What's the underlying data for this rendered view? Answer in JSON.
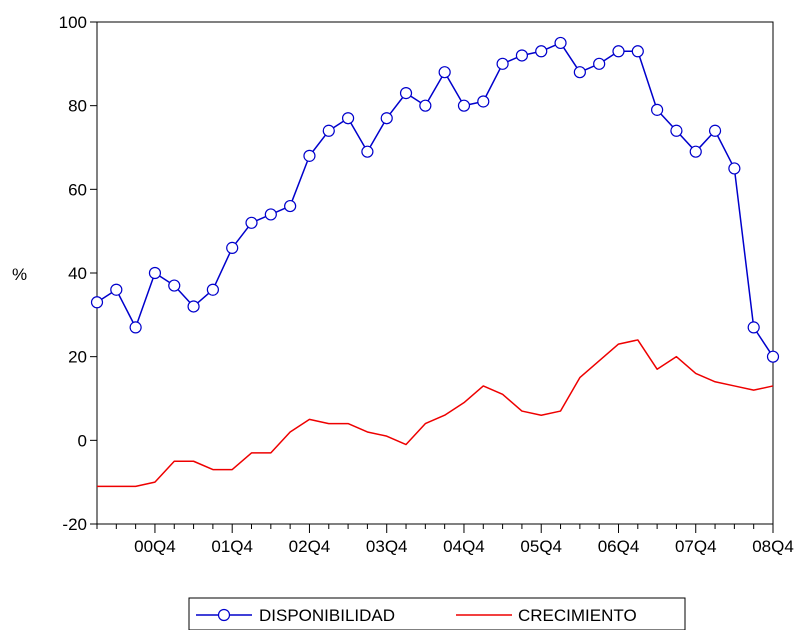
{
  "chart_data": {
    "type": "line",
    "ylabel": "%",
    "ylim": [
      -20,
      100
    ],
    "yticks": [
      -20,
      0,
      20,
      40,
      60,
      80,
      100
    ],
    "x": [
      "00Q1",
      "00Q2",
      "00Q3",
      "00Q4",
      "01Q1",
      "01Q2",
      "01Q3",
      "01Q4",
      "02Q1",
      "02Q2",
      "02Q3",
      "02Q4",
      "03Q1",
      "03Q2",
      "03Q3",
      "03Q4",
      "04Q1",
      "04Q2",
      "04Q3",
      "04Q4",
      "05Q1",
      "05Q2",
      "05Q3",
      "05Q4",
      "06Q1",
      "06Q2",
      "06Q3",
      "06Q4",
      "07Q1",
      "07Q2",
      "07Q3",
      "07Q4",
      "08Q1",
      "08Q2",
      "08Q3",
      "08Q4"
    ],
    "xtick_labels": [
      "00Q4",
      "01Q4",
      "02Q4",
      "03Q4",
      "04Q4",
      "05Q4",
      "06Q4",
      "07Q4",
      "08Q4"
    ],
    "grid": false,
    "legend": "bottom",
    "series": [
      {
        "name": "DISPONIBILIDAD",
        "color": "#0000cc",
        "marker": "circle",
        "values": [
          33,
          36,
          27,
          40,
          37,
          32,
          36,
          46,
          52,
          54,
          56,
          68,
          74,
          77,
          69,
          77,
          83,
          80,
          88,
          80,
          81,
          90,
          92,
          93,
          95,
          88,
          90,
          93,
          93,
          79,
          74,
          69,
          74,
          65,
          27,
          20
        ]
      },
      {
        "name": "CRECIMIENTO",
        "color": "#ee0000",
        "marker": "none",
        "values": [
          -11,
          -11,
          -11,
          -10,
          -5,
          -5,
          -7,
          -7,
          -3,
          -3,
          2,
          5,
          4,
          4,
          2,
          1,
          -1,
          4,
          6,
          9,
          13,
          11,
          7,
          6,
          7,
          15,
          19,
          23,
          24,
          17,
          20,
          16,
          14,
          13,
          12,
          13
        ]
      }
    ]
  }
}
